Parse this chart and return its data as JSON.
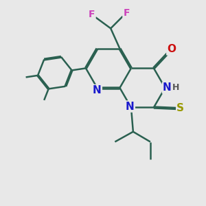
{
  "bg_color": "#e8e8e8",
  "bond_color": "#2a6050",
  "bond_width": 1.8,
  "atom_colors": {
    "N": "#1a1acc",
    "O": "#cc1111",
    "S": "#999900",
    "F": "#cc44bb",
    "H": "#555555",
    "C": "#2a6050"
  },
  "font_size_atom": 11,
  "font_size_small": 9,
  "figsize": [
    3.0,
    3.0
  ],
  "dpi": 100
}
